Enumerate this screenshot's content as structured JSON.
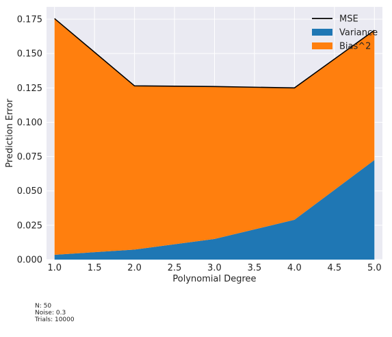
{
  "chart_data": {
    "type": "area",
    "x": [
      1.0,
      2.0,
      3.0,
      4.0,
      5.0
    ],
    "xlabel": "Polynomial Degree",
    "ylabel": "Prediction Error",
    "xlim": [
      0.9,
      5.1
    ],
    "ylim": [
      0.0,
      0.184
    ],
    "xticks": [
      "1.0",
      "1.5",
      "2.0",
      "2.5",
      "3.0",
      "3.5",
      "4.0",
      "4.5",
      "5.0"
    ],
    "yticks": [
      "0.000",
      "0.025",
      "0.050",
      "0.075",
      "0.100",
      "0.125",
      "0.150",
      "0.175"
    ],
    "stacked": true,
    "series": [
      {
        "name": "Variance",
        "kind": "area",
        "color": "#1f77b4",
        "values": [
          0.0035,
          0.0073,
          0.015,
          0.029,
          0.0725
        ]
      },
      {
        "name": "Bias^2",
        "kind": "area",
        "color": "#ff7f0e",
        "values": [
          0.172,
          0.1192,
          0.111,
          0.096,
          0.0945
        ]
      },
      {
        "name": "MSE",
        "kind": "line",
        "color": "#000000",
        "values": [
          0.1755,
          0.1265,
          0.126,
          0.125,
          0.167
        ]
      }
    ],
    "legend": {
      "placement": "top-right",
      "order": [
        "MSE",
        "Variance",
        "Bias^2"
      ]
    },
    "grid": true,
    "background": "#eaeaf2"
  },
  "footnotes": [
    "N: 50",
    "Noise: 0.3",
    "Trials: 10000"
  ]
}
